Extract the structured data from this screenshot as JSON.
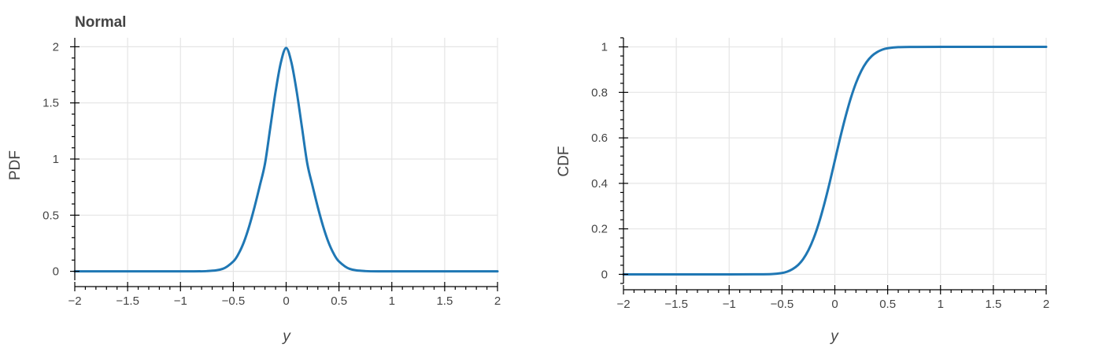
{
  "colors": {
    "curve": "#1f77b4"
  },
  "chart_data": [
    {
      "type": "line",
      "title": "Normal",
      "xlabel": "y",
      "ylabel": "PDF",
      "xlim": [
        -2,
        2
      ],
      "ylim": [
        -0.08,
        2.08
      ],
      "xticks": [
        -2,
        -1.5,
        -1,
        -0.5,
        0,
        0.5,
        1,
        1.5,
        2
      ],
      "xtick_labels": [
        "−2",
        "−1.5",
        "−1",
        "−0.5",
        "0",
        "0.5",
        "1",
        "1.5",
        "2"
      ],
      "yticks": [
        0,
        0.5,
        1,
        1.5,
        2
      ],
      "ytick_labels": [
        "0",
        "0.5",
        "1",
        "1.5",
        "2"
      ],
      "grid": true,
      "series": [
        {
          "x": [
            -2,
            -1.5,
            -1,
            -0.75,
            -0.6,
            -0.5,
            -0.45,
            -0.4,
            -0.35,
            -0.3,
            -0.25,
            -0.2,
            -0.15,
            -0.1,
            -0.05,
            0,
            0.05,
            0.1,
            0.15,
            0.2,
            0.25,
            0.3,
            0.35,
            0.4,
            0.45,
            0.5,
            0.6,
            0.75,
            1,
            1.5,
            2
          ],
          "y": [
            0,
            0,
            0,
            0.002,
            0.022,
            0.088,
            0.157,
            0.26,
            0.4,
            0.57,
            0.76,
            0.96,
            1.28,
            1.6,
            1.86,
            1.99,
            1.86,
            1.6,
            1.28,
            0.96,
            0.76,
            0.57,
            0.4,
            0.26,
            0.157,
            0.088,
            0.022,
            0.002,
            0,
            0,
            0
          ]
        }
      ]
    },
    {
      "type": "line",
      "title": "",
      "xlabel": "y",
      "ylabel": "CDF",
      "xlim": [
        -2,
        2
      ],
      "ylim": [
        -0.04,
        1.04
      ],
      "xticks": [
        -2,
        -1.5,
        -1,
        -0.5,
        0,
        0.5,
        1,
        1.5,
        2
      ],
      "xtick_labels": [
        "−2",
        "−1.5",
        "−1",
        "−0.5",
        "0",
        "0.5",
        "1",
        "1.5",
        "2"
      ],
      "yticks": [
        0,
        0.2,
        0.4,
        0.6,
        0.8,
        1
      ],
      "ytick_labels": [
        "0",
        "0.2",
        "0.4",
        "0.6",
        "0.8",
        "1"
      ],
      "grid": true,
      "series": [
        {
          "x": [
            -2,
            -1.5,
            -1,
            -0.75,
            -0.6,
            -0.5,
            -0.45,
            -0.4,
            -0.35,
            -0.3,
            -0.25,
            -0.2,
            -0.15,
            -0.1,
            -0.05,
            0,
            0.05,
            0.1,
            0.15,
            0.2,
            0.25,
            0.3,
            0.35,
            0.4,
            0.45,
            0.5,
            0.6,
            0.75,
            1,
            1.5,
            2
          ],
          "y": [
            0,
            0,
            0,
            0.0002,
            0.0013,
            0.006,
            0.012,
            0.023,
            0.04,
            0.067,
            0.106,
            0.159,
            0.227,
            0.309,
            0.401,
            0.5,
            0.599,
            0.691,
            0.773,
            0.841,
            0.894,
            0.933,
            0.96,
            0.977,
            0.988,
            0.994,
            0.9987,
            0.9998,
            1,
            1,
            1
          ]
        }
      ]
    }
  ]
}
